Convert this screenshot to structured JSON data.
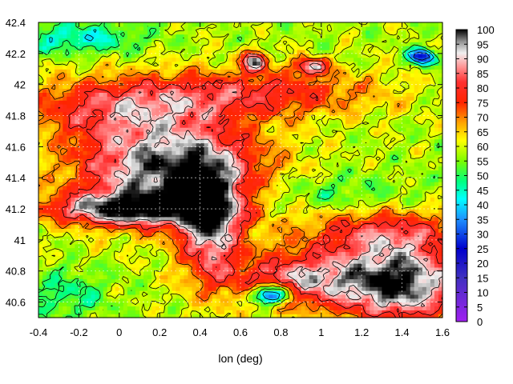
{
  "chart_data": {
    "type": "heatmap",
    "title": "",
    "xlabel": "lon (deg)",
    "ylabel": "",
    "xlim": [
      -0.4,
      1.6
    ],
    "ylim": [
      40.5,
      42.4
    ],
    "x_ticks": [
      -0.4,
      -0.2,
      0,
      0.2,
      0.4,
      0.6,
      0.8,
      1,
      1.2,
      1.4,
      1.6
    ],
    "x_tick_labels": [
      "-0.4",
      "-0.2",
      "0",
      "0.2",
      "0.4",
      "0.6",
      "0.8",
      "1",
      "1.2",
      "1.4",
      "1.6"
    ],
    "y_ticks": [
      40.6,
      40.8,
      41,
      41.2,
      41.4,
      41.6,
      41.8,
      42,
      42.2,
      42.4
    ],
    "y_tick_labels": [
      "40.6",
      "40.8",
      "41",
      "41.2",
      "41.4",
      "41.6",
      "41.8",
      "42",
      "42.2",
      "42.4"
    ],
    "grid": true,
    "colorbar": {
      "min": 0,
      "max": 100,
      "ticks": [
        0,
        5,
        10,
        15,
        20,
        25,
        30,
        35,
        40,
        45,
        50,
        55,
        60,
        65,
        70,
        75,
        80,
        85,
        90,
        95,
        100
      ],
      "tick_labels": [
        "0",
        "5",
        "10",
        "15",
        "20",
        "25",
        "30",
        "35",
        "40",
        "45",
        "50",
        "55",
        "60",
        "65",
        "70",
        "75",
        "80",
        "85",
        "90",
        "95",
        "100"
      ],
      "colors": [
        {
          "v": 0,
          "c": "#a020f0"
        },
        {
          "v": 15,
          "c": "#4030c0"
        },
        {
          "v": 25,
          "c": "#0000cd"
        },
        {
          "v": 35,
          "c": "#1e90ff"
        },
        {
          "v": 42,
          "c": "#00ffff"
        },
        {
          "v": 48,
          "c": "#00ff7f"
        },
        {
          "v": 55,
          "c": "#7cfc00"
        },
        {
          "v": 62,
          "c": "#ffff00"
        },
        {
          "v": 68,
          "c": "#ffa500"
        },
        {
          "v": 75,
          "c": "#ff2400"
        },
        {
          "v": 82,
          "c": "#ff3030"
        },
        {
          "v": 87,
          "c": "#ff9090"
        },
        {
          "v": 92,
          "c": "#f0f0f0"
        },
        {
          "v": 96,
          "c": "#909090"
        },
        {
          "v": 100,
          "c": "#000000"
        }
      ]
    },
    "field": {
      "background_value": 58,
      "features": [
        {
          "lon": 0.25,
          "lat": 41.45,
          "dlon": 0.45,
          "dlat": 0.3,
          "amp": 42
        },
        {
          "lon": 0.05,
          "lat": 41.2,
          "dlon": 0.4,
          "dlat": 0.1,
          "amp": 38
        },
        {
          "lon": 0.45,
          "lat": 41.1,
          "dlon": 0.15,
          "dlat": 0.35,
          "amp": 35
        },
        {
          "lon": 1.4,
          "lat": 40.72,
          "dlon": 0.3,
          "dlat": 0.25,
          "amp": 42
        },
        {
          "lon": 0.9,
          "lat": 40.75,
          "dlon": 0.35,
          "dlat": 0.18,
          "amp": 30
        },
        {
          "lon": 0.0,
          "lat": 41.85,
          "dlon": 0.5,
          "dlat": 0.2,
          "amp": 22
        },
        {
          "lon": 0.7,
          "lat": 41.95,
          "dlon": 0.6,
          "dlat": 0.15,
          "amp": 20
        },
        {
          "lon": 1.3,
          "lat": 41.05,
          "dlon": 0.4,
          "dlat": 0.15,
          "amp": 22
        },
        {
          "lon": 0.67,
          "lat": 42.15,
          "dlon": 0.06,
          "dlat": 0.06,
          "amp": 40
        },
        {
          "lon": 0.95,
          "lat": 42.12,
          "dlon": 0.08,
          "dlat": 0.05,
          "amp": 35
        },
        {
          "lon": -0.2,
          "lat": 42.3,
          "dlon": 0.3,
          "dlat": 0.1,
          "amp": -15
        },
        {
          "lon": 1.0,
          "lat": 41.3,
          "dlon": 0.4,
          "dlat": 0.12,
          "amp": -8
        },
        {
          "lon": -0.25,
          "lat": 40.65,
          "dlon": 0.2,
          "dlat": 0.15,
          "amp": -10
        },
        {
          "lon": 0.75,
          "lat": 40.65,
          "dlon": 0.1,
          "dlat": 0.06,
          "amp": -45
        },
        {
          "lon": 1.5,
          "lat": 42.18,
          "dlon": 0.06,
          "dlat": 0.05,
          "amp": -40
        }
      ],
      "noise_amplitude": 9
    },
    "contour_levels": [
      30,
      40,
      50,
      60,
      70,
      80,
      90
    ]
  }
}
